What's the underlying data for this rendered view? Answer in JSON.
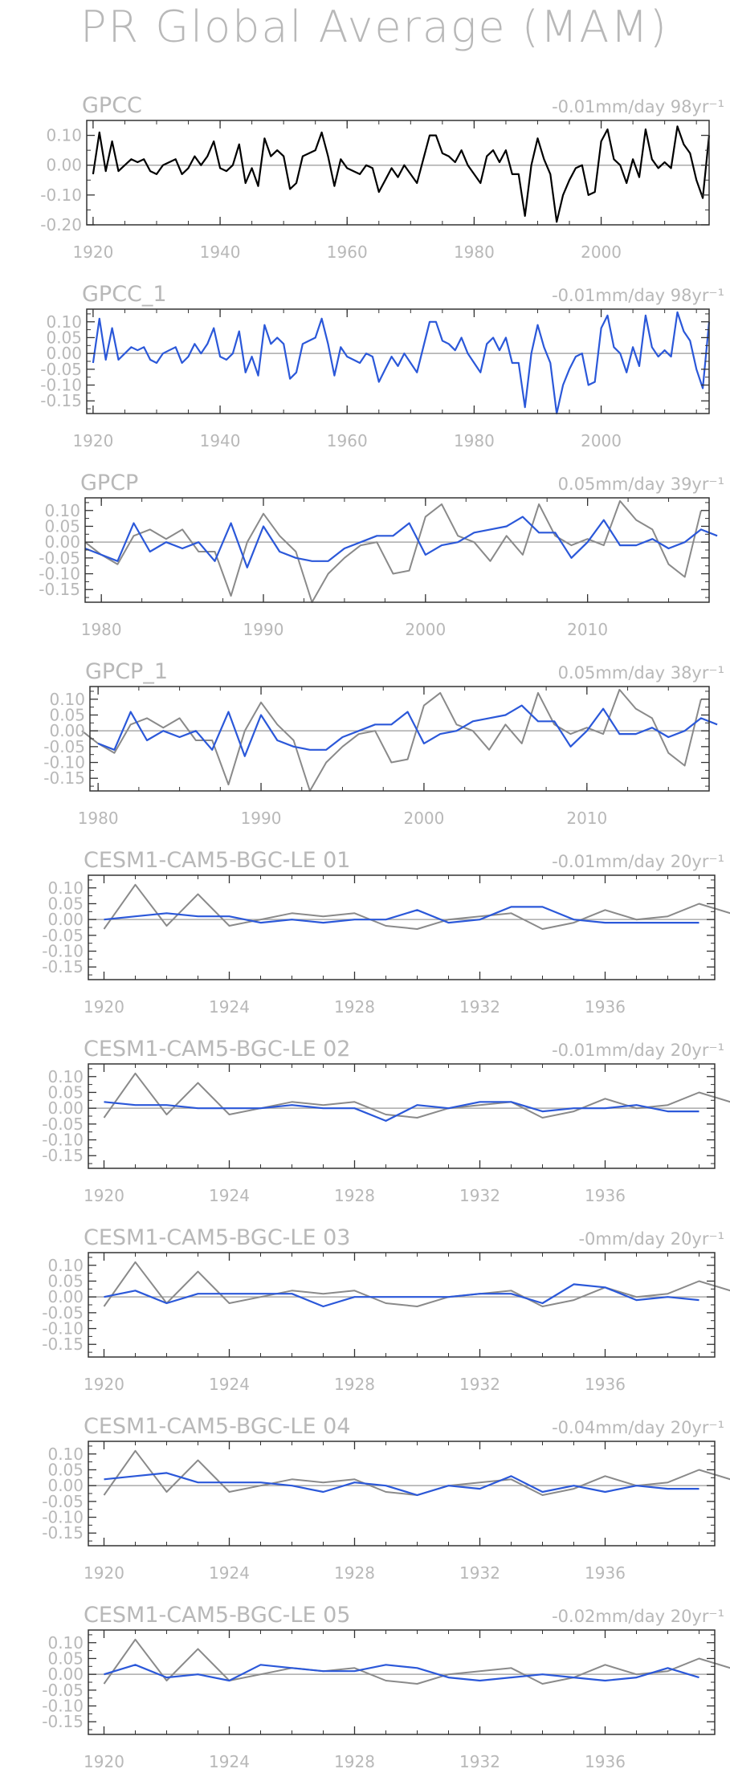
{
  "page": {
    "title": "PR Global Average (MAM)"
  },
  "colors": {
    "primary": "#000000",
    "model": "#2b58d9",
    "reference": "#8a8a8a",
    "text": "#b8b8b8",
    "axis": "#333333",
    "zero": "#aaaaaa"
  },
  "chart_data": [
    {
      "type": "line",
      "title": "GPCC",
      "trend": "-0.01mm/day 98yr⁻¹",
      "xlim": [
        1919,
        2017
      ],
      "ylim": [
        -0.2,
        0.15
      ],
      "yticks": [
        -0.2,
        -0.1,
        0.0,
        0.1
      ],
      "ytick_labels": [
        "-0.20",
        "-0.10",
        "0.00",
        "0.10"
      ],
      "xticks": [
        1920,
        1940,
        1960,
        1980,
        2000
      ],
      "xtick_labels": [
        "1920",
        "1940",
        "1960",
        "1980",
        "2000"
      ],
      "series": [
        {
          "role": "primary",
          "x_start": 1920,
          "values": [
            -0.03,
            0.11,
            -0.02,
            0.08,
            -0.02,
            0.0,
            0.02,
            0.01,
            0.02,
            -0.02,
            -0.03,
            0.0,
            0.01,
            0.02,
            -0.03,
            -0.01,
            0.03,
            0.0,
            0.03,
            0.08,
            -0.01,
            -0.02,
            0.0,
            0.07,
            -0.06,
            -0.01,
            -0.07,
            0.09,
            0.03,
            0.05,
            0.03,
            -0.08,
            -0.06,
            0.03,
            0.04,
            0.05,
            0.11,
            0.03,
            -0.07,
            0.02,
            -0.01,
            -0.02,
            -0.03,
            0.0,
            -0.01,
            -0.09,
            -0.05,
            -0.01,
            -0.04,
            0.0,
            -0.03,
            -0.06,
            0.02,
            0.1,
            0.1,
            0.04,
            0.03,
            0.01,
            0.05,
            0.0,
            -0.03,
            -0.06,
            0.03,
            0.05,
            0.01,
            0.05,
            -0.03,
            -0.03,
            -0.17,
            0.0,
            0.09,
            0.02,
            -0.03,
            -0.19,
            -0.1,
            -0.05,
            -0.01,
            0.0,
            -0.1,
            -0.09,
            0.08,
            0.12,
            0.02,
            0.0,
            -0.06,
            0.02,
            -0.04,
            0.12,
            0.02,
            -0.01,
            0.01,
            -0.01,
            0.13,
            0.07,
            0.04,
            -0.05,
            -0.11,
            0.1
          ]
        }
      ]
    },
    {
      "type": "line",
      "title": "GPCC_1",
      "trend": "-0.01mm/day 98yr⁻¹",
      "xlim": [
        1919,
        2017
      ],
      "ylim": [
        -0.19,
        0.14
      ],
      "yticks": [
        -0.15,
        -0.1,
        -0.05,
        0.0,
        0.05,
        0.1
      ],
      "ytick_labels": [
        "-0.15",
        "-0.10",
        "-0.05",
        "0.00",
        "0.05",
        "0.10"
      ],
      "xticks": [
        1920,
        1940,
        1960,
        1980,
        2000
      ],
      "xtick_labels": [
        "1920",
        "1940",
        "1960",
        "1980",
        "2000"
      ],
      "series": [
        {
          "role": "model",
          "x_start": 1920,
          "values": [
            -0.03,
            0.11,
            -0.02,
            0.08,
            -0.02,
            0.0,
            0.02,
            0.01,
            0.02,
            -0.02,
            -0.03,
            0.0,
            0.01,
            0.02,
            -0.03,
            -0.01,
            0.03,
            0.0,
            0.03,
            0.08,
            -0.01,
            -0.02,
            0.0,
            0.07,
            -0.06,
            -0.01,
            -0.07,
            0.09,
            0.03,
            0.05,
            0.03,
            -0.08,
            -0.06,
            0.03,
            0.04,
            0.05,
            0.11,
            0.03,
            -0.07,
            0.02,
            -0.01,
            -0.02,
            -0.03,
            0.0,
            -0.01,
            -0.09,
            -0.05,
            -0.01,
            -0.04,
            0.0,
            -0.03,
            -0.06,
            0.02,
            0.1,
            0.1,
            0.04,
            0.03,
            0.01,
            0.05,
            0.0,
            -0.03,
            -0.06,
            0.03,
            0.05,
            0.01,
            0.05,
            -0.03,
            -0.03,
            -0.17,
            0.0,
            0.09,
            0.02,
            -0.03,
            -0.19,
            -0.1,
            -0.05,
            -0.01,
            0.0,
            -0.1,
            -0.09,
            0.08,
            0.12,
            0.02,
            0.0,
            -0.06,
            0.02,
            -0.04,
            0.12,
            0.02,
            -0.01,
            0.01,
            -0.01,
            0.13,
            0.07,
            0.04,
            -0.05,
            -0.11,
            0.1
          ]
        }
      ]
    },
    {
      "type": "line",
      "title": "GPCP",
      "trend": "0.05mm/day 39yr⁻¹",
      "xlim": [
        1979,
        2017.5
      ],
      "ylim": [
        -0.19,
        0.14
      ],
      "yticks": [
        -0.15,
        -0.1,
        -0.05,
        0.0,
        0.05,
        0.1
      ],
      "ytick_labels": [
        "-0.15",
        "-0.10",
        "-0.05",
        "0.00",
        "0.05",
        "0.10"
      ],
      "xticks": [
        1980,
        1990,
        2000,
        2010
      ],
      "xtick_labels": [
        "1980",
        "1990",
        "2000",
        "2010"
      ],
      "series": [
        {
          "role": "reference",
          "x_start": 1979,
          "values": [
            0.0,
            -0.04,
            -0.07,
            0.02,
            0.04,
            0.01,
            0.04,
            -0.03,
            -0.03,
            -0.17,
            0.0,
            0.09,
            0.02,
            -0.03,
            -0.19,
            -0.1,
            -0.05,
            -0.01,
            0.0,
            -0.1,
            -0.09,
            0.08,
            0.12,
            0.02,
            0.0,
            -0.06,
            0.02,
            -0.04,
            0.12,
            0.02,
            -0.01,
            0.01,
            -0.01,
            0.13,
            0.07,
            0.04,
            -0.07,
            -0.11,
            0.1
          ]
        },
        {
          "role": "model",
          "x_start": 1979,
          "values": [
            -0.02,
            -0.04,
            -0.06,
            0.06,
            -0.03,
            0.0,
            -0.02,
            0.0,
            -0.06,
            0.06,
            -0.08,
            0.05,
            -0.03,
            -0.05,
            -0.06,
            -0.06,
            -0.02,
            0.0,
            0.02,
            0.02,
            0.06,
            -0.04,
            -0.01,
            0.0,
            0.03,
            0.04,
            0.05,
            0.08,
            0.03,
            0.03,
            -0.05,
            0.0,
            0.07,
            -0.01,
            -0.01,
            0.01,
            -0.02,
            0.0,
            0.04,
            0.02
          ]
        }
      ]
    },
    {
      "type": "line",
      "title": "GPCP_1",
      "trend": "0.05mm/day 38yr⁻¹",
      "xlim": [
        1979.5,
        2017.5
      ],
      "ylim": [
        -0.19,
        0.14
      ],
      "yticks": [
        -0.15,
        -0.1,
        -0.05,
        0.0,
        0.05,
        0.1
      ],
      "ytick_labels": [
        "-0.15",
        "-0.10",
        "-0.05",
        "0.00",
        "0.05",
        "0.10"
      ],
      "xticks": [
        1980,
        1990,
        2000,
        2010
      ],
      "xtick_labels": [
        "1980",
        "1990",
        "2000",
        "2010"
      ],
      "series": [
        {
          "role": "reference",
          "x_start": 1979,
          "values": [
            0.0,
            -0.04,
            -0.07,
            0.02,
            0.04,
            0.01,
            0.04,
            -0.03,
            -0.03,
            -0.17,
            0.0,
            0.09,
            0.02,
            -0.03,
            -0.19,
            -0.1,
            -0.05,
            -0.01,
            0.0,
            -0.1,
            -0.09,
            0.08,
            0.12,
            0.02,
            0.0,
            -0.06,
            0.02,
            -0.04,
            0.12,
            0.02,
            -0.01,
            0.01,
            -0.01,
            0.13,
            0.07,
            0.04,
            -0.07,
            -0.11,
            0.1
          ]
        },
        {
          "role": "model",
          "x_start": 1980,
          "values": [
            -0.04,
            -0.06,
            0.06,
            -0.03,
            0.0,
            -0.02,
            0.0,
            -0.06,
            0.06,
            -0.08,
            0.05,
            -0.03,
            -0.05,
            -0.06,
            -0.06,
            -0.02,
            0.0,
            0.02,
            0.02,
            0.06,
            -0.04,
            -0.01,
            0.0,
            0.03,
            0.04,
            0.05,
            0.08,
            0.03,
            0.03,
            -0.05,
            0.0,
            0.07,
            -0.01,
            -0.01,
            0.01,
            -0.02,
            0.0,
            0.04,
            0.02
          ]
        }
      ]
    },
    {
      "type": "line",
      "title": "CESM1-CAM5-BGC-LE 01",
      "trend": "-0.01mm/day 20yr⁻¹",
      "xlim": [
        1919.5,
        1939.5
      ],
      "ylim": [
        -0.19,
        0.14
      ],
      "yticks": [
        -0.15,
        -0.1,
        -0.05,
        0.0,
        0.05,
        0.1
      ],
      "ytick_labels": [
        "-0.15",
        "-0.10",
        "-0.05",
        "0.00",
        "0.05",
        "0.10"
      ],
      "xticks": [
        1920,
        1924,
        1928,
        1932,
        1936
      ],
      "xtick_labels": [
        "1920",
        "1924",
        "1928",
        "1932",
        "1936"
      ],
      "series": [
        {
          "role": "reference",
          "x_start": 1920,
          "values": [
            -0.03,
            0.11,
            -0.02,
            0.08,
            -0.02,
            0.0,
            0.02,
            0.01,
            0.02,
            -0.02,
            -0.03,
            0.0,
            0.01,
            0.02,
            -0.03,
            -0.01,
            0.03,
            0.0,
            0.01,
            0.05,
            0.02
          ]
        },
        {
          "role": "model",
          "x_start": 1920,
          "values": [
            0.0,
            0.01,
            0.02,
            0.01,
            0.01,
            -0.01,
            0.0,
            -0.01,
            0.0,
            0.0,
            0.03,
            -0.01,
            0.0,
            0.04,
            0.04,
            0.0,
            -0.01,
            -0.01,
            -0.01,
            -0.01
          ]
        }
      ]
    },
    {
      "type": "line",
      "title": "CESM1-CAM5-BGC-LE 02",
      "trend": "-0.01mm/day 20yr⁻¹",
      "xlim": [
        1919.5,
        1939.5
      ],
      "ylim": [
        -0.19,
        0.14
      ],
      "yticks": [
        -0.15,
        -0.1,
        -0.05,
        0.0,
        0.05,
        0.1
      ],
      "ytick_labels": [
        "-0.15",
        "-0.10",
        "-0.05",
        "0.00",
        "0.05",
        "0.10"
      ],
      "xticks": [
        1920,
        1924,
        1928,
        1932,
        1936
      ],
      "xtick_labels": [
        "1920",
        "1924",
        "1928",
        "1932",
        "1936"
      ],
      "series": [
        {
          "role": "reference",
          "x_start": 1920,
          "values": [
            -0.03,
            0.11,
            -0.02,
            0.08,
            -0.02,
            0.0,
            0.02,
            0.01,
            0.02,
            -0.02,
            -0.03,
            0.0,
            0.01,
            0.02,
            -0.03,
            -0.01,
            0.03,
            0.0,
            0.01,
            0.05,
            0.02
          ]
        },
        {
          "role": "model",
          "x_start": 1920,
          "values": [
            0.02,
            0.01,
            0.01,
            0.0,
            0.0,
            0.0,
            0.01,
            0.0,
            0.0,
            -0.04,
            0.01,
            0.0,
            0.02,
            0.02,
            -0.01,
            0.0,
            0.0,
            0.01,
            -0.01,
            -0.01
          ]
        }
      ]
    },
    {
      "type": "line",
      "title": "CESM1-CAM5-BGC-LE 03",
      "trend": "-0mm/day 20yr⁻¹",
      "xlim": [
        1919.5,
        1939.5
      ],
      "ylim": [
        -0.19,
        0.14
      ],
      "yticks": [
        -0.15,
        -0.1,
        -0.05,
        0.0,
        0.05,
        0.1
      ],
      "ytick_labels": [
        "-0.15",
        "-0.10",
        "-0.05",
        "0.00",
        "0.05",
        "0.10"
      ],
      "xticks": [
        1920,
        1924,
        1928,
        1932,
        1936
      ],
      "xtick_labels": [
        "1920",
        "1924",
        "1928",
        "1932",
        "1936"
      ],
      "series": [
        {
          "role": "reference",
          "x_start": 1920,
          "values": [
            -0.03,
            0.11,
            -0.02,
            0.08,
            -0.02,
            0.0,
            0.02,
            0.01,
            0.02,
            -0.02,
            -0.03,
            0.0,
            0.01,
            0.02,
            -0.03,
            -0.01,
            0.03,
            0.0,
            0.01,
            0.05,
            0.02
          ]
        },
        {
          "role": "model",
          "x_start": 1920,
          "values": [
            0.0,
            0.02,
            -0.02,
            0.01,
            0.01,
            0.01,
            0.01,
            -0.03,
            0.0,
            0.0,
            0.0,
            0.0,
            0.01,
            0.01,
            -0.02,
            0.04,
            0.03,
            -0.01,
            0.0,
            -0.01
          ]
        }
      ]
    },
    {
      "type": "line",
      "title": "CESM1-CAM5-BGC-LE 04",
      "trend": "-0.04mm/day 20yr⁻¹",
      "xlim": [
        1919.5,
        1939.5
      ],
      "ylim": [
        -0.19,
        0.14
      ],
      "yticks": [
        -0.15,
        -0.1,
        -0.05,
        0.0,
        0.05,
        0.1
      ],
      "ytick_labels": [
        "-0.15",
        "-0.10",
        "-0.05",
        "0.00",
        "0.05",
        "0.10"
      ],
      "xticks": [
        1920,
        1924,
        1928,
        1932,
        1936
      ],
      "xtick_labels": [
        "1920",
        "1924",
        "1928",
        "1932",
        "1936"
      ],
      "series": [
        {
          "role": "reference",
          "x_start": 1920,
          "values": [
            -0.03,
            0.11,
            -0.02,
            0.08,
            -0.02,
            0.0,
            0.02,
            0.01,
            0.02,
            -0.02,
            -0.03,
            0.0,
            0.01,
            0.02,
            -0.03,
            -0.01,
            0.03,
            0.0,
            0.01,
            0.05,
            0.02
          ]
        },
        {
          "role": "model",
          "x_start": 1920,
          "values": [
            0.02,
            0.03,
            0.04,
            0.01,
            0.01,
            0.01,
            0.0,
            -0.02,
            0.01,
            0.0,
            -0.03,
            0.0,
            -0.01,
            0.03,
            -0.02,
            0.0,
            -0.02,
            0.0,
            -0.01,
            -0.01
          ]
        }
      ]
    },
    {
      "type": "line",
      "title": "CESM1-CAM5-BGC-LE 05",
      "trend": "-0.02mm/day 20yr⁻¹",
      "xlim": [
        1919.5,
        1939.5
      ],
      "ylim": [
        -0.19,
        0.14
      ],
      "yticks": [
        -0.15,
        -0.1,
        -0.05,
        0.0,
        0.05,
        0.1
      ],
      "ytick_labels": [
        "-0.15",
        "-0.10",
        "-0.05",
        "0.00",
        "0.05",
        "0.10"
      ],
      "xticks": [
        1920,
        1924,
        1928,
        1932,
        1936
      ],
      "xtick_labels": [
        "1920",
        "1924",
        "1928",
        "1932",
        "1936"
      ],
      "series": [
        {
          "role": "reference",
          "x_start": 1920,
          "values": [
            -0.03,
            0.11,
            -0.02,
            0.08,
            -0.02,
            0.0,
            0.02,
            0.01,
            0.02,
            -0.02,
            -0.03,
            0.0,
            0.01,
            0.02,
            -0.03,
            -0.01,
            0.03,
            0.0,
            0.01,
            0.05,
            0.02
          ]
        },
        {
          "role": "model",
          "x_start": 1920,
          "values": [
            0.0,
            0.03,
            -0.01,
            0.0,
            -0.02,
            0.03,
            0.02,
            0.01,
            0.01,
            0.03,
            0.02,
            -0.01,
            -0.02,
            -0.01,
            0.0,
            -0.01,
            -0.02,
            -0.01,
            0.02,
            -0.01
          ]
        }
      ]
    }
  ]
}
